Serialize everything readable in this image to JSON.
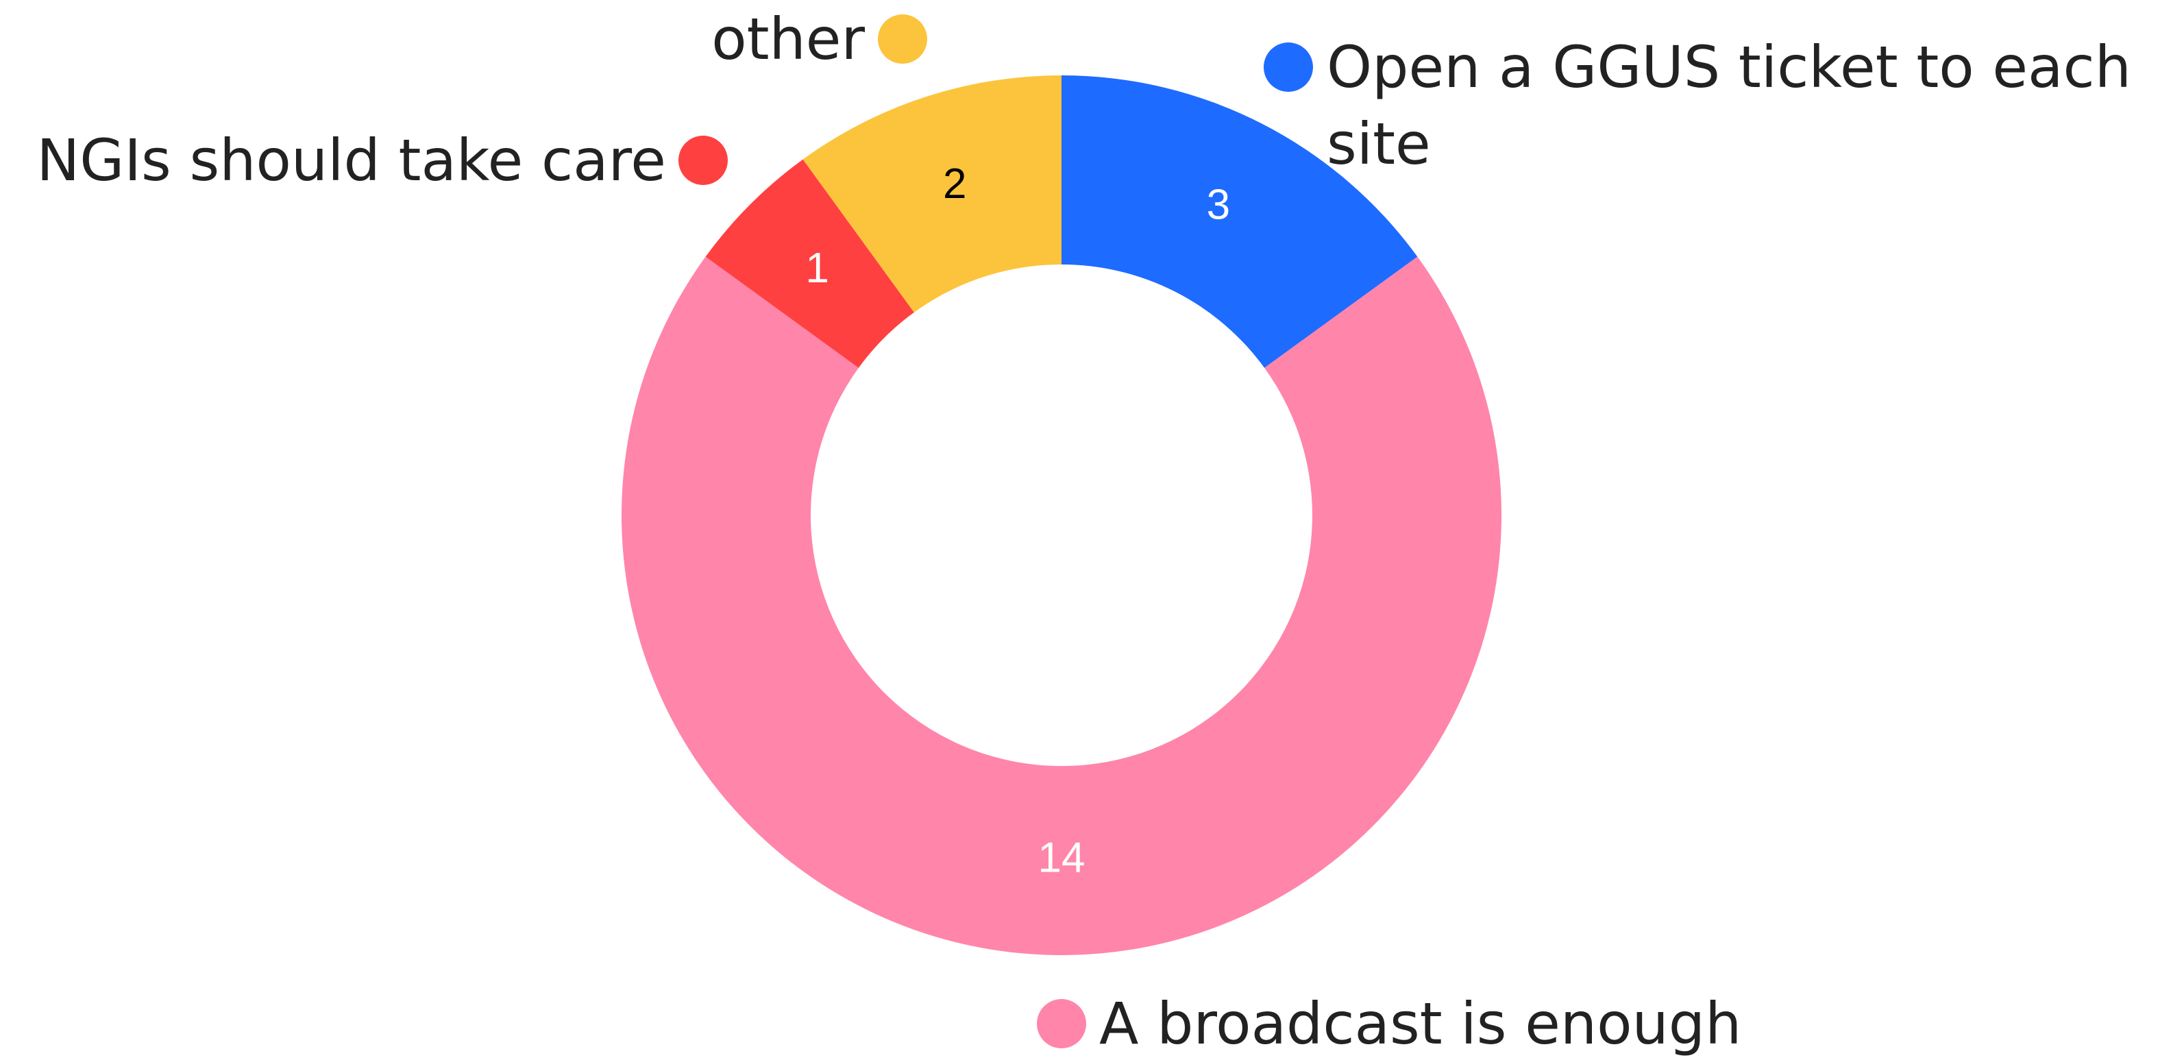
{
  "chart_data": {
    "type": "donut",
    "categories": [
      "Open a GGUS ticket to each site",
      "A broadcast is enough",
      "NGIs should take care",
      "other"
    ],
    "values": [
      3,
      14,
      1,
      2
    ],
    "colors": [
      "#1e6bff",
      "#ff85ab",
      "#ff4040",
      "#fcc43c"
    ],
    "value_label_colors": [
      "#ffffff",
      "#ffffff",
      "#ffffff",
      "#000000"
    ]
  }
}
